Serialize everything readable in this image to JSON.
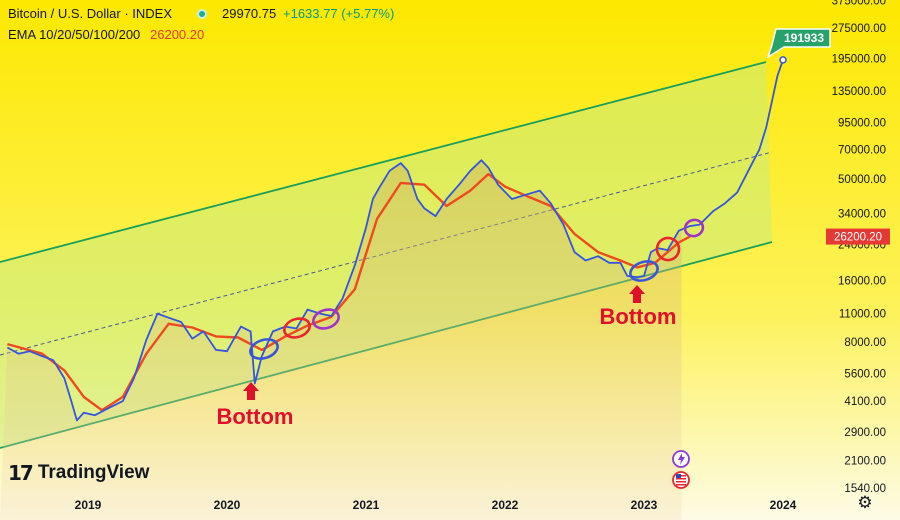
{
  "header": {
    "symbol_title": "Bitcoin / U.S. Dollar · INDEX",
    "last_price": "29970.75",
    "change": "+1633.77 (+5.77%)",
    "ema_label": "EMA 10/20/50/100/200",
    "ema_value": "26200.20",
    "status_color": "#22ab94"
  },
  "logo": {
    "mark": "17",
    "text": "TradingView"
  },
  "icons": {
    "settings": "gear-icon",
    "alert": "lightning-icon",
    "flag": "us-flag-icon"
  },
  "colors": {
    "background_top": "#fde800",
    "background_bottom": "#fdfbe6",
    "channel_line": "#1a9f5a",
    "channel_fill": "#c9ec7e",
    "price_line": "#3355e0",
    "ema_line": "#ef4a1f",
    "ema_badge": "#e53935",
    "price_badge": "#26a36b",
    "bottom_label": "#e0102c",
    "circle_blue": "#3b55d8",
    "circle_red": "#e8262e",
    "circle_purple": "#a034c8"
  },
  "chart_data": {
    "type": "line",
    "scale": "log",
    "ylim": [
      1400,
      400000
    ],
    "xlim": [
      2018.42,
      2024.42
    ],
    "grid": false,
    "y_ticks": [
      "375000.00",
      "275000.00",
      "195000.00",
      "135000.00",
      "95000.00",
      "70000.00",
      "50000.00",
      "34000.00",
      "24000.00",
      "16000.00",
      "11000.00",
      "8000.00",
      "5600.00",
      "4100.00",
      "2900.00",
      "2100.00",
      "1540.00"
    ],
    "y_tick_values": [
      375000,
      275000,
      195000,
      135000,
      95000,
      70000,
      50000,
      34000,
      24000,
      16000,
      11000,
      8000,
      5600,
      4100,
      2900,
      2100,
      1540
    ],
    "x_ticks": [
      "2019",
      "2020",
      "2021",
      "2022",
      "2023",
      "2024"
    ],
    "x_tick_values": [
      2019,
      2020,
      2021,
      2022,
      2023,
      2024
    ],
    "series": [
      {
        "name": "",
        "role": "price",
        "x": [
          2018.42,
          2018.5,
          2018.58,
          2018.67,
          2018.75,
          2018.83,
          2018.88,
          2018.92,
          2018.97,
          2019.05,
          2019.15,
          2019.25,
          2019.33,
          2019.42,
          2019.5,
          2019.58,
          2019.67,
          2019.75,
          2019.83,
          2019.92,
          2020.0,
          2020.1,
          2020.17,
          2020.2,
          2020.25,
          2020.33,
          2020.42,
          2020.5,
          2020.58,
          2020.67,
          2020.75,
          2020.83,
          2020.92,
          2021.0,
          2021.05,
          2021.1,
          2021.17,
          2021.25,
          2021.3,
          2021.37,
          2021.42,
          2021.5,
          2021.58,
          2021.67,
          2021.75,
          2021.83,
          2021.88,
          2021.95,
          2022.05,
          2022.15,
          2022.25,
          2022.33,
          2022.42,
          2022.5,
          2022.58,
          2022.67,
          2022.75,
          2022.83,
          2022.88,
          2022.95,
          2023.0,
          2023.05,
          2023.1,
          2023.17,
          2023.25,
          2023.33,
          2023.4,
          2023.5,
          2023.58,
          2023.67,
          2023.75,
          2023.83,
          2023.88,
          2023.92,
          2023.96,
          2024.0
        ],
        "values": [
          7500,
          7000,
          7200,
          6800,
          6500,
          5300,
          4100,
          3300,
          3600,
          3500,
          3800,
          4100,
          5300,
          8200,
          11000,
          10500,
          10000,
          8300,
          9000,
          7300,
          7200,
          9500,
          9000,
          5000,
          6800,
          9000,
          9500,
          9300,
          11500,
          11000,
          10700,
          13000,
          19000,
          29000,
          40000,
          46000,
          55000,
          60000,
          55000,
          40000,
          36000,
          33000,
          40000,
          47000,
          55000,
          62000,
          57000,
          47000,
          40000,
          42000,
          44000,
          38000,
          30000,
          22000,
          20000,
          21000,
          19500,
          19500,
          16800,
          16600,
          16800,
          22000,
          23000,
          22500,
          28000,
          29500,
          29970,
          35000,
          38000,
          43000,
          55000,
          70000,
          90000,
          120000,
          160000,
          191933
        ]
      },
      {
        "name": "",
        "role": "ema",
        "x": [
          2018.42,
          2018.67,
          2018.83,
          2018.97,
          2019.1,
          2019.25,
          2019.42,
          2019.58,
          2019.75,
          2019.92,
          2020.08,
          2020.25,
          2020.42,
          2020.58,
          2020.75,
          2020.92,
          2021.08,
          2021.25,
          2021.42,
          2021.58,
          2021.75,
          2021.88,
          2022.0,
          2022.17,
          2022.33,
          2022.5,
          2022.67,
          2022.83,
          2022.95,
          2023.08,
          2023.25,
          2023.33
        ],
        "values": [
          7800,
          7000,
          5800,
          4300,
          3700,
          4300,
          7000,
          9800,
          9400,
          8500,
          8400,
          7300,
          8500,
          9600,
          10600,
          14500,
          32000,
          48000,
          47000,
          37000,
          44000,
          53000,
          46000,
          41000,
          37000,
          27000,
          22000,
          20000,
          18500,
          19500,
          24500,
          26200
        ]
      }
    ],
    "annotations": [
      {
        "text": "Bottom",
        "x": 2020.17,
        "y": 5000
      },
      {
        "text": "Bottom",
        "x": 2022.95,
        "y": 16600
      }
    ],
    "price_badge": "191933",
    "ema_badge": "26200.20"
  }
}
